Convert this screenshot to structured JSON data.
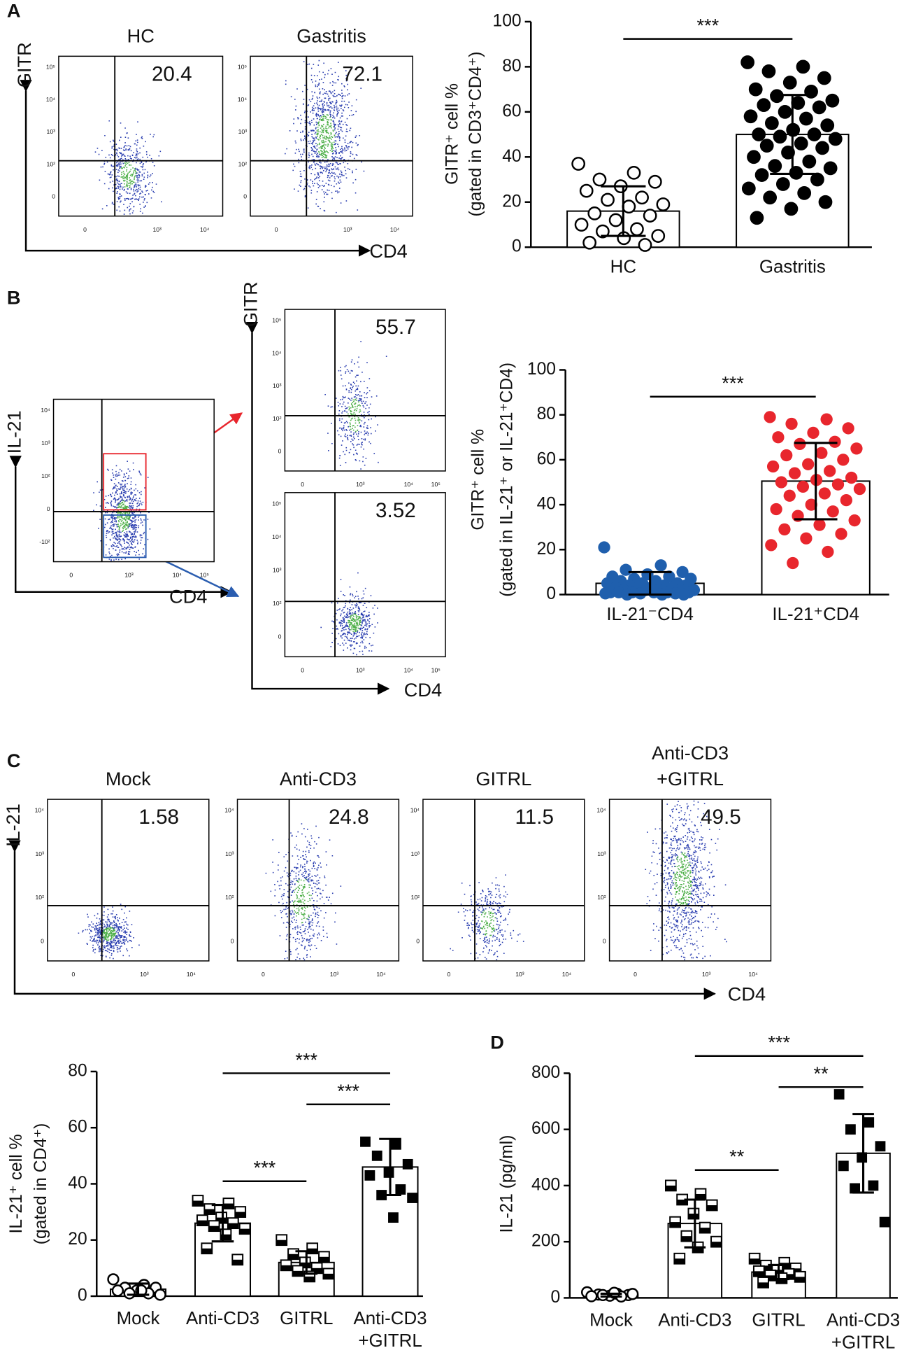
{
  "panel_labels": [
    "A",
    "B",
    "C",
    "D"
  ],
  "flow_A": {
    "y_axis": "GITR",
    "x_axis": "CD4",
    "yticks": [
      "10⁵",
      "10⁴",
      "10³",
      "10²",
      "0"
    ],
    "xticks": [
      "0",
      "10³",
      "10⁴"
    ],
    "plots": [
      {
        "title": "HC",
        "value": 20.4
      },
      {
        "title": "Gastritis",
        "value": 72.1
      }
    ]
  },
  "flow_B": {
    "gate_plot": {
      "y_axis": "IL-21",
      "x_axis": "CD4",
      "yticks": [
        "10⁴",
        "10³",
        "10²",
        "0",
        "-10²"
      ],
      "xticks": [
        "0",
        "10³",
        "10⁴",
        "10⁵"
      ]
    },
    "y_axis": "GITR",
    "x_axis": "CD4",
    "yticks": [
      "10⁵",
      "10⁴",
      "10³",
      "10²",
      "0"
    ],
    "xticks": [
      "0",
      "10³",
      "10⁴",
      "10⁵"
    ],
    "plots": [
      {
        "value": 55.7
      },
      {
        "value": 3.52
      }
    ]
  },
  "flow_C": {
    "y_axis": "IL-21",
    "x_axis": "CD4",
    "yticks": [
      "10⁴",
      "10³",
      "10²",
      "0"
    ],
    "xticks": [
      "0",
      "10³",
      "10⁴"
    ],
    "plots": [
      {
        "title": "Mock",
        "value": 1.58
      },
      {
        "title": "Anti-CD3",
        "value": 24.8
      },
      {
        "title": "GITRL",
        "value": 11.5
      },
      {
        "title": [
          "Anti-CD3",
          "+GITRL"
        ],
        "value": 49.5
      }
    ]
  },
  "chart_data": [
    {
      "type": "bar",
      "ylabel": [
        "GITR⁺ cell %",
        "(gated in CD3⁺CD4⁺)"
      ],
      "categories": [
        "HC",
        "Gastritis"
      ],
      "values": [
        16,
        50
      ],
      "errors": [
        11,
        17.5
      ],
      "points": [
        [
          37,
          33,
          30,
          29,
          27,
          25,
          22,
          21,
          19,
          18,
          15,
          14,
          12,
          10,
          8,
          7,
          5,
          4,
          2,
          1
        ],
        [
          82,
          80,
          78,
          75,
          73,
          70,
          69,
          67,
          65,
          64,
          63,
          62,
          60,
          58,
          57,
          55,
          54,
          52,
          50,
          50,
          49,
          48,
          46,
          45,
          44,
          42,
          40,
          38,
          36,
          35,
          33,
          32,
          30,
          28,
          26,
          24,
          22,
          20,
          17,
          13
        ]
      ],
      "markers": [
        {
          "shape": "circle",
          "color": "#ffffff"
        },
        {
          "shape": "circle",
          "color": "#000000"
        }
      ],
      "bar_color": "#ffffff",
      "ylim": [
        0,
        100
      ],
      "yticks": [
        0,
        20,
        40,
        60,
        80,
        100
      ],
      "significance": [
        {
          "between": [
            0,
            1
          ],
          "label": "***"
        }
      ]
    },
    {
      "type": "bar",
      "ylabel": [
        "GITR⁺ cell %",
        "(gated in IL-21⁺ or IL-21⁺CD4)"
      ],
      "categories": [
        "IL-21⁻CD4",
        "IL-21⁺CD4"
      ],
      "values": [
        5,
        50.5
      ],
      "errors": [
        5,
        17
      ],
      "points": [
        [
          21,
          13,
          11,
          10,
          9,
          8,
          8,
          7,
          7,
          6,
          6,
          5,
          5,
          5,
          4,
          4,
          4,
          3,
          3,
          3,
          3,
          2,
          2,
          2,
          2,
          2,
          1,
          1,
          1,
          1,
          1,
          1,
          0.5,
          0.5,
          0.5,
          0,
          0,
          0
        ],
        [
          79,
          78,
          76,
          74,
          72,
          70,
          68,
          67,
          65,
          63,
          62,
          60,
          58,
          57,
          55,
          54,
          52,
          51,
          50,
          49,
          48,
          47,
          45,
          44,
          42,
          40,
          38,
          37,
          35,
          33,
          31,
          29,
          27,
          25,
          22,
          19,
          14
        ]
      ],
      "markers": [
        {
          "shape": "filled-circle",
          "color": "#1f5fad"
        },
        {
          "shape": "filled-circle",
          "color": "#e8262d"
        }
      ],
      "bar_color": "#ffffff",
      "ylim": [
        0,
        100
      ],
      "yticks": [
        0,
        20,
        40,
        60,
        80,
        100
      ],
      "significance": [
        {
          "between": [
            0,
            1
          ],
          "label": "***"
        }
      ]
    },
    {
      "type": "bar",
      "ylabel": [
        "IL-21⁺ cell %",
        "(gated in CD4⁺)"
      ],
      "categories": [
        "Mock",
        "Anti-CD3",
        "GITRL",
        [
          "Anti-CD3",
          "+GITRL"
        ]
      ],
      "values": [
        2.5,
        26,
        12,
        46
      ],
      "errors": [
        2,
        6.5,
        4,
        10
      ],
      "points": [
        [
          6,
          4,
          3,
          3,
          2,
          2,
          1,
          1,
          0.5,
          2
        ],
        [
          34,
          33,
          31,
          30,
          28,
          27,
          26,
          25,
          24,
          22,
          17,
          13
        ],
        [
          20,
          17,
          15,
          14,
          12,
          11,
          10,
          9,
          8,
          7
        ],
        [
          55,
          54,
          50,
          47,
          44,
          43,
          38,
          36,
          35,
          28
        ]
      ],
      "markers": [
        {
          "shape": "circle",
          "color": "#ffffff"
        },
        {
          "shape": "half-square",
          "color": "#000000"
        },
        {
          "shape": "half-square",
          "color": "#000000"
        },
        {
          "shape": "square",
          "color": "#000000"
        }
      ],
      "bar_color": "#ffffff",
      "ylim": [
        0,
        80
      ],
      "yticks": [
        0,
        20,
        40,
        60,
        80
      ],
      "significance": [
        {
          "between": [
            1,
            3
          ],
          "label": "***"
        },
        {
          "between": [
            2,
            3
          ],
          "label": "***"
        },
        {
          "between": [
            1,
            2
          ],
          "label": "***"
        }
      ]
    },
    {
      "type": "bar",
      "ylabel": [
        "IL-21 (pg/ml)"
      ],
      "categories": [
        "Mock",
        "Anti-CD3",
        "GITRL",
        [
          "Anti-CD3",
          "+GITRL"
        ]
      ],
      "values": [
        10,
        265,
        92,
        515
      ],
      "errors": [
        5,
        85,
        25,
        140
      ],
      "points": [
        [
          20,
          15,
          12,
          10,
          8,
          6,
          5,
          10,
          14,
          18
        ],
        [
          400,
          370,
          350,
          330,
          300,
          270,
          250,
          220,
          200,
          180,
          140
        ],
        [
          140,
          125,
          115,
          105,
          100,
          95,
          85,
          80,
          75,
          70,
          55
        ],
        [
          725,
          625,
          600,
          540,
          500,
          470,
          400,
          390,
          270
        ]
      ],
      "markers": [
        {
          "shape": "circle",
          "color": "#ffffff"
        },
        {
          "shape": "half-square",
          "color": "#000000"
        },
        {
          "shape": "half-square",
          "color": "#000000"
        },
        {
          "shape": "square",
          "color": "#000000"
        }
      ],
      "bar_color": "#ffffff",
      "ylim": [
        0,
        800
      ],
      "yticks": [
        0,
        200,
        400,
        600,
        800
      ],
      "significance": [
        {
          "between": [
            1,
            3
          ],
          "label": "***"
        },
        {
          "between": [
            2,
            3
          ],
          "label": "**"
        },
        {
          "between": [
            1,
            2
          ],
          "label": "**"
        }
      ]
    }
  ]
}
